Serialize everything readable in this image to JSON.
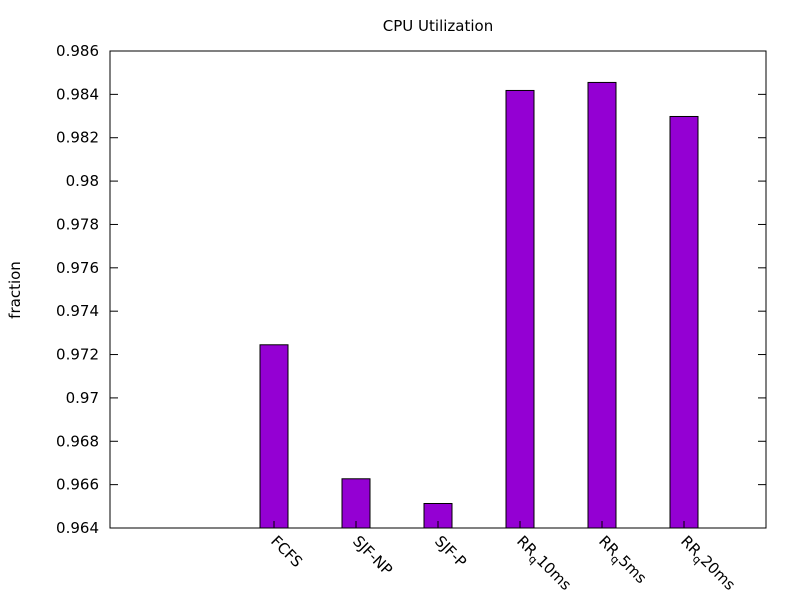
{
  "chart_data": {
    "type": "bar",
    "title": "CPU Utilization",
    "ylabel": "fraction",
    "xlabel": "",
    "ylim": [
      0.964,
      0.986
    ],
    "yticks": [
      "0.964",
      "0.966",
      "0.968",
      "0.97",
      "0.972",
      "0.974",
      "0.976",
      "0.978",
      "0.98",
      "0.982",
      "0.984",
      "0.986"
    ],
    "categories": [
      "FCFS",
      "SJF-NP",
      "SJF-P",
      "RRq10ms",
      "RRq5ms",
      "RRq20ms"
    ],
    "category_parts": [
      {
        "main": "FCFS",
        "sub": ""
      },
      {
        "main": "SJF-NP",
        "sub": ""
      },
      {
        "main": "SJF-P",
        "sub": ""
      },
      {
        "main": "RR",
        "sub": "q",
        "rest": "10ms"
      },
      {
        "main": "RR",
        "sub": "q",
        "rest": "5ms"
      },
      {
        "main": "RR",
        "sub": "q",
        "rest": "20ms"
      }
    ],
    "values": [
      0.97245,
      0.96627,
      0.96513,
      0.98418,
      0.98455,
      0.98298
    ],
    "bar_color": "#9400d3",
    "grid": false,
    "legend": "none"
  }
}
